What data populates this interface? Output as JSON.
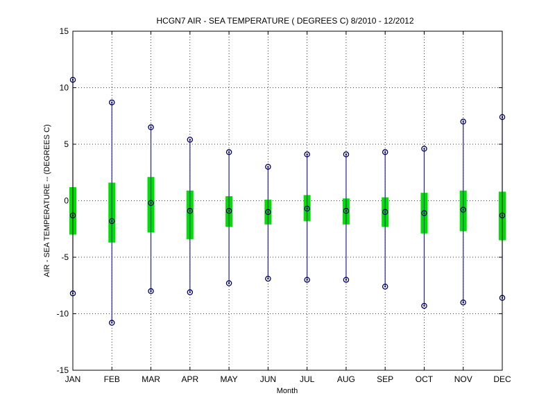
{
  "chart_data": {
    "type": "boxplot",
    "title": "HCGN7  AIR - SEA TEMPERATURE ( DEGREES C) 8/2010 - 12/2012",
    "xlabel": "Month",
    "ylabel": "AIR - SEA TEMPERATURE -- (DEGREES C)",
    "ylim": [
      -15,
      15
    ],
    "yticks": [
      -15,
      -10,
      -5,
      0,
      5,
      10,
      15
    ],
    "grid": true,
    "categories": [
      "JAN",
      "FEB",
      "MAR",
      "APR",
      "MAY",
      "JUN",
      "JUL",
      "AUG",
      "SEP",
      "OCT",
      "NOV",
      "DEC"
    ],
    "series": [
      {
        "max": [
          10.7,
          8.7,
          6.5,
          5.4,
          4.3,
          3.0,
          4.1,
          4.1,
          4.3,
          4.6,
          7.0,
          7.4
        ],
        "q3": [
          1.2,
          1.6,
          2.1,
          0.9,
          0.4,
          0.1,
          0.5,
          0.2,
          0.3,
          0.7,
          0.9,
          0.8
        ],
        "median": [
          -1.3,
          -1.8,
          -0.2,
          -0.9,
          -0.9,
          -1.0,
          -0.7,
          -0.9,
          -1.0,
          -1.1,
          -0.8,
          -1.3
        ],
        "q1": [
          -3.0,
          -3.7,
          -2.8,
          -3.4,
          -2.3,
          -2.1,
          -1.8,
          -2.1,
          -2.3,
          -2.9,
          -2.7,
          -3.5
        ],
        "min": [
          -8.2,
          -10.8,
          -8.0,
          -8.1,
          -7.3,
          -6.9,
          -7.0,
          -7.0,
          -7.6,
          -9.3,
          -9.0,
          -8.6
        ]
      }
    ],
    "colors": {
      "whisker": "#1f1fa0",
      "box": "#00e000",
      "marker": "#000066"
    }
  }
}
